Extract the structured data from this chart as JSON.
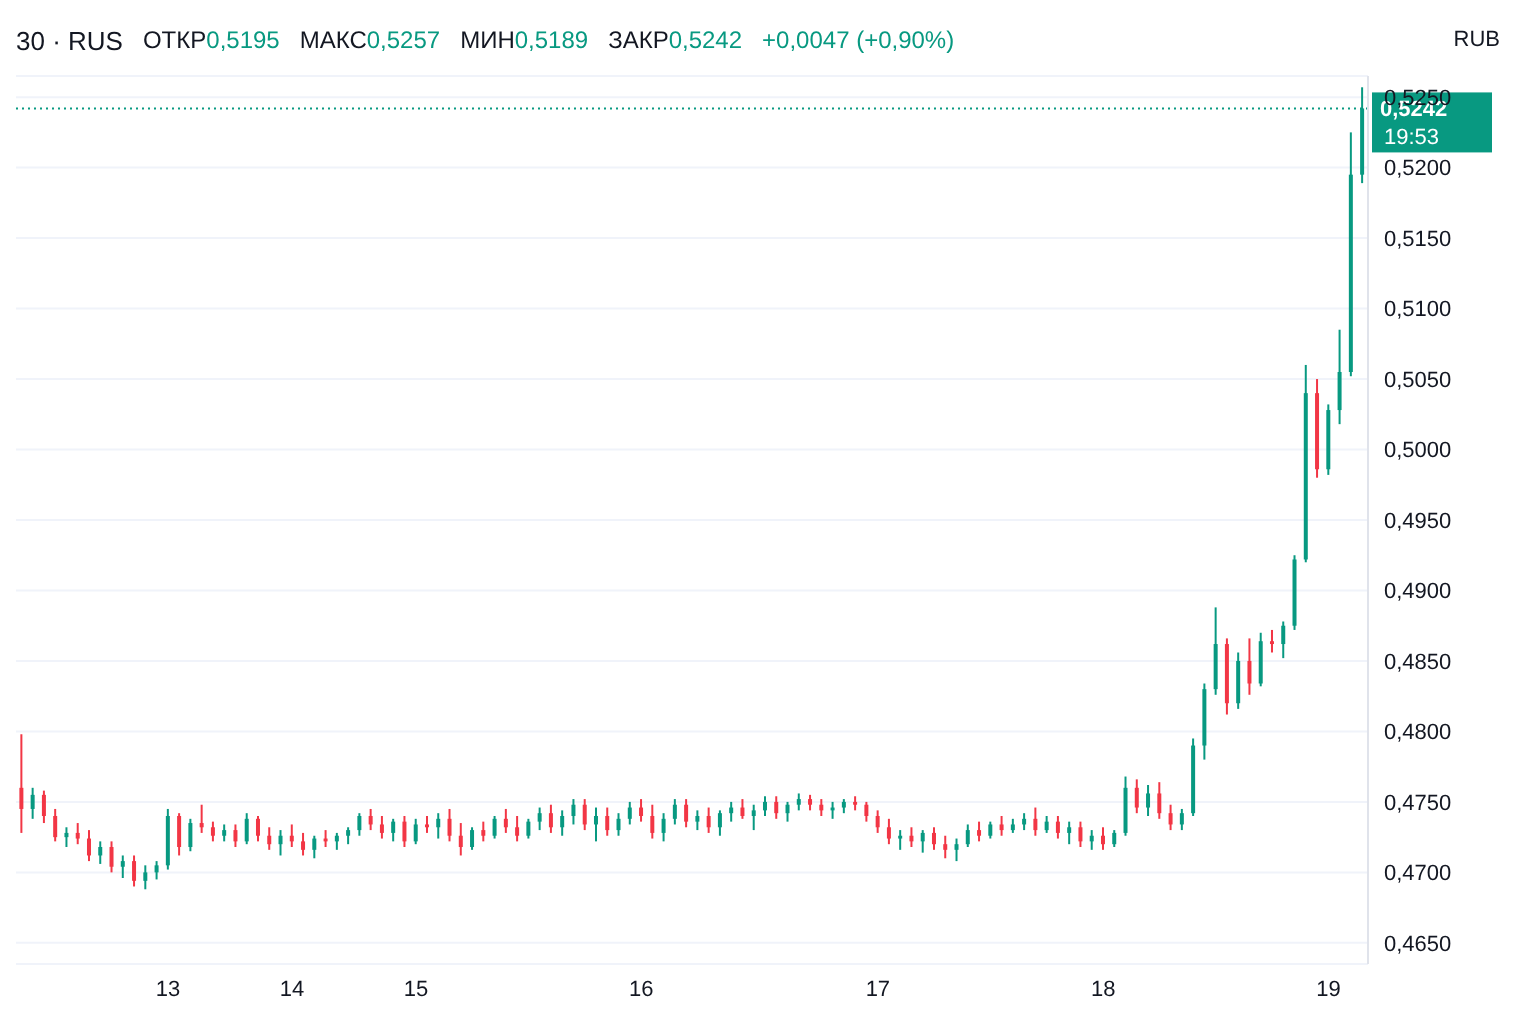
{
  "chart_data": {
    "type": "candlestick",
    "title": "30 · RUS",
    "annotations": [
      "ОТКР0,5195",
      "МАКС0,5257",
      "МИН0,5189",
      "ЗАКР0,5242",
      "+0,0047 (+0,90%)",
      "RUB",
      "19:53"
    ],
    "categories": [
      null,
      null,
      null,
      null,
      null,
      null,
      null,
      null,
      null,
      null,
      null,
      null,
      null,
      "13",
      null,
      null,
      null,
      null,
      null,
      null,
      null,
      null,
      null,
      null,
      "14",
      null,
      null,
      null,
      null,
      null,
      null,
      null,
      null,
      null,
      null,
      "15",
      null,
      null,
      null,
      null,
      null,
      null,
      null,
      null,
      null,
      null,
      null,
      null,
      null,
      null,
      null,
      null,
      null,
      null,
      null,
      "16",
      null,
      null,
      null,
      null,
      null,
      null,
      null,
      null,
      null,
      null,
      null,
      null,
      null,
      null,
      null,
      null,
      null,
      null,
      null,
      null,
      "17",
      null,
      null,
      null,
      null,
      null,
      null,
      null,
      null,
      null,
      null,
      null,
      null,
      null,
      null,
      null,
      null,
      null,
      null,
      null,
      "18",
      null,
      null,
      null,
      null,
      null,
      null,
      null,
      null,
      null,
      null,
      null,
      null,
      null,
      null,
      null,
      null,
      null,
      null,
      null,
      "19",
      null,
      null,
      null
    ],
    "ohlc": [
      [
        0.476,
        0.4798,
        0.4728,
        0.4745
      ],
      [
        0.4745,
        0.476,
        0.4738,
        0.4755
      ],
      [
        0.4755,
        0.4758,
        0.4735,
        0.474
      ],
      [
        0.474,
        0.4745,
        0.4722,
        0.4725
      ],
      [
        0.4725,
        0.4732,
        0.4718,
        0.4728
      ],
      [
        0.4728,
        0.4735,
        0.472,
        0.4724
      ],
      [
        0.4724,
        0.473,
        0.4708,
        0.4712
      ],
      [
        0.4712,
        0.4722,
        0.4706,
        0.4718
      ],
      [
        0.4718,
        0.4722,
        0.47,
        0.4704
      ],
      [
        0.4704,
        0.4712,
        0.4696,
        0.4708
      ],
      [
        0.4708,
        0.4712,
        0.469,
        0.4694
      ],
      [
        0.4694,
        0.4705,
        0.4688,
        0.47
      ],
      [
        0.47,
        0.4708,
        0.4695,
        0.4705
      ],
      [
        0.4705,
        0.4745,
        0.4702,
        0.474
      ],
      [
        0.474,
        0.4742,
        0.4712,
        0.4718
      ],
      [
        0.4718,
        0.4738,
        0.4715,
        0.4735
      ],
      [
        0.4735,
        0.4748,
        0.4728,
        0.4732
      ],
      [
        0.4732,
        0.4736,
        0.4722,
        0.4726
      ],
      [
        0.4726,
        0.4734,
        0.4722,
        0.473
      ],
      [
        0.473,
        0.4734,
        0.4718,
        0.4722
      ],
      [
        0.4722,
        0.4742,
        0.472,
        0.4738
      ],
      [
        0.4738,
        0.474,
        0.4722,
        0.4726
      ],
      [
        0.4726,
        0.4732,
        0.4716,
        0.472
      ],
      [
        0.472,
        0.473,
        0.4712,
        0.4726
      ],
      [
        0.4726,
        0.4734,
        0.4718,
        0.4722
      ],
      [
        0.4722,
        0.4728,
        0.4712,
        0.4716
      ],
      [
        0.4716,
        0.4726,
        0.471,
        0.4724
      ],
      [
        0.4724,
        0.473,
        0.4718,
        0.4722
      ],
      [
        0.4722,
        0.4728,
        0.4716,
        0.4726
      ],
      [
        0.4726,
        0.4732,
        0.472,
        0.473
      ],
      [
        0.473,
        0.4742,
        0.4726,
        0.474
      ],
      [
        0.474,
        0.4745,
        0.473,
        0.4734
      ],
      [
        0.4734,
        0.474,
        0.4724,
        0.4728
      ],
      [
        0.4728,
        0.4738,
        0.4722,
        0.4736
      ],
      [
        0.4736,
        0.474,
        0.4718,
        0.4722
      ],
      [
        0.4722,
        0.4738,
        0.472,
        0.4734
      ],
      [
        0.4734,
        0.474,
        0.4728,
        0.4732
      ],
      [
        0.4732,
        0.4742,
        0.4724,
        0.4738
      ],
      [
        0.4738,
        0.4745,
        0.4722,
        0.4726
      ],
      [
        0.4726,
        0.4735,
        0.4712,
        0.4718
      ],
      [
        0.4718,
        0.4732,
        0.4716,
        0.473
      ],
      [
        0.473,
        0.4736,
        0.4722,
        0.4726
      ],
      [
        0.4726,
        0.474,
        0.4724,
        0.4738
      ],
      [
        0.4738,
        0.4745,
        0.4728,
        0.4732
      ],
      [
        0.4732,
        0.474,
        0.4722,
        0.4726
      ],
      [
        0.4726,
        0.4738,
        0.4724,
        0.4736
      ],
      [
        0.4736,
        0.4746,
        0.473,
        0.4742
      ],
      [
        0.4742,
        0.4748,
        0.4728,
        0.4732
      ],
      [
        0.4732,
        0.4744,
        0.4726,
        0.474
      ],
      [
        0.474,
        0.4752,
        0.4734,
        0.4748
      ],
      [
        0.4748,
        0.4752,
        0.473,
        0.4734
      ],
      [
        0.4734,
        0.4746,
        0.4722,
        0.474
      ],
      [
        0.474,
        0.4746,
        0.4726,
        0.473
      ],
      [
        0.473,
        0.4742,
        0.4726,
        0.4738
      ],
      [
        0.4738,
        0.475,
        0.4734,
        0.4746
      ],
      [
        0.4746,
        0.4752,
        0.4736,
        0.474
      ],
      [
        0.474,
        0.4748,
        0.4724,
        0.4728
      ],
      [
        0.4728,
        0.4742,
        0.4722,
        0.4738
      ],
      [
        0.4738,
        0.4752,
        0.4734,
        0.4748
      ],
      [
        0.4748,
        0.4752,
        0.4732,
        0.4736
      ],
      [
        0.4736,
        0.4744,
        0.473,
        0.474
      ],
      [
        0.474,
        0.4746,
        0.4728,
        0.4732
      ],
      [
        0.4732,
        0.4744,
        0.4726,
        0.4742
      ],
      [
        0.4742,
        0.475,
        0.4736,
        0.4746
      ],
      [
        0.4746,
        0.4752,
        0.4738,
        0.474
      ],
      [
        0.474,
        0.4748,
        0.473,
        0.4744
      ],
      [
        0.4744,
        0.4754,
        0.474,
        0.475
      ],
      [
        0.475,
        0.4754,
        0.4738,
        0.4742
      ],
      [
        0.4742,
        0.475,
        0.4736,
        0.4748
      ],
      [
        0.4748,
        0.4756,
        0.4744,
        0.4752
      ],
      [
        0.4752,
        0.4755,
        0.4744,
        0.4748
      ],
      [
        0.4748,
        0.4752,
        0.474,
        0.4744
      ],
      [
        0.4744,
        0.475,
        0.4738,
        0.4746
      ],
      [
        0.4746,
        0.4752,
        0.4742,
        0.475
      ],
      [
        0.475,
        0.4754,
        0.4744,
        0.4748
      ],
      [
        0.4748,
        0.475,
        0.4736,
        0.474
      ],
      [
        0.474,
        0.4744,
        0.4728,
        0.4732
      ],
      [
        0.4732,
        0.4738,
        0.472,
        0.4724
      ],
      [
        0.4724,
        0.473,
        0.4716,
        0.4726
      ],
      [
        0.4726,
        0.4732,
        0.4718,
        0.4722
      ],
      [
        0.4722,
        0.473,
        0.4714,
        0.4728
      ],
      [
        0.4728,
        0.4732,
        0.4716,
        0.472
      ],
      [
        0.472,
        0.4726,
        0.471,
        0.4716
      ],
      [
        0.4716,
        0.4724,
        0.4708,
        0.472
      ],
      [
        0.472,
        0.4734,
        0.4718,
        0.473
      ],
      [
        0.473,
        0.4736,
        0.4722,
        0.4726
      ],
      [
        0.4726,
        0.4736,
        0.4724,
        0.4734
      ],
      [
        0.4734,
        0.474,
        0.4726,
        0.473
      ],
      [
        0.473,
        0.4738,
        0.4728,
        0.4734
      ],
      [
        0.4734,
        0.4742,
        0.473,
        0.4738
      ],
      [
        0.4738,
        0.4746,
        0.4726,
        0.473
      ],
      [
        0.473,
        0.474,
        0.4728,
        0.4736
      ],
      [
        0.4736,
        0.474,
        0.4724,
        0.4728
      ],
      [
        0.4728,
        0.4736,
        0.472,
        0.4732
      ],
      [
        0.4732,
        0.4736,
        0.4718,
        0.4722
      ],
      [
        0.4722,
        0.473,
        0.4716,
        0.4726
      ],
      [
        0.4726,
        0.4732,
        0.4716,
        0.472
      ],
      [
        0.472,
        0.473,
        0.4718,
        0.4728
      ],
      [
        0.4728,
        0.4768,
        0.4726,
        0.476
      ],
      [
        0.476,
        0.4766,
        0.4742,
        0.4746
      ],
      [
        0.4746,
        0.4762,
        0.474,
        0.4756
      ],
      [
        0.4756,
        0.4764,
        0.4738,
        0.4742
      ],
      [
        0.4742,
        0.4748,
        0.473,
        0.4734
      ],
      [
        0.4734,
        0.4745,
        0.473,
        0.4742
      ],
      [
        0.4742,
        0.4795,
        0.474,
        0.479
      ],
      [
        0.479,
        0.4834,
        0.478,
        0.483
      ],
      [
        0.483,
        0.4888,
        0.4826,
        0.4862
      ],
      [
        0.4862,
        0.4866,
        0.4812,
        0.482
      ],
      [
        0.482,
        0.4856,
        0.4816,
        0.485
      ],
      [
        0.485,
        0.4866,
        0.4826,
        0.4834
      ],
      [
        0.4834,
        0.487,
        0.4832,
        0.4864
      ],
      [
        0.4864,
        0.4872,
        0.4856,
        0.4862
      ],
      [
        0.4862,
        0.4878,
        0.4852,
        0.4875
      ],
      [
        0.4875,
        0.4925,
        0.4872,
        0.4922
      ],
      [
        0.4922,
        0.506,
        0.492,
        0.504
      ],
      [
        0.504,
        0.505,
        0.498,
        0.4986
      ],
      [
        0.4986,
        0.5032,
        0.4982,
        0.5028
      ],
      [
        0.5028,
        0.5085,
        0.5018,
        0.5055
      ],
      [
        0.5055,
        0.5225,
        0.5052,
        0.5195
      ],
      [
        0.5195,
        0.5257,
        0.5189,
        0.5242
      ]
    ],
    "ylim": [
      0.4635,
      0.5265
    ],
    "yticks": [
      {
        "value": 0.465,
        "label": "0,4650"
      },
      {
        "value": 0.47,
        "label": "0,4700"
      },
      {
        "value": 0.475,
        "label": "0,4750"
      },
      {
        "value": 0.48,
        "label": "0,4800"
      },
      {
        "value": 0.485,
        "label": "0,4850"
      },
      {
        "value": 0.49,
        "label": "0,4900"
      },
      {
        "value": 0.495,
        "label": "0,4950"
      },
      {
        "value": 0.5,
        "label": "0,5000"
      },
      {
        "value": 0.505,
        "label": "0,5050"
      },
      {
        "value": 0.51,
        "label": "0,5100"
      },
      {
        "value": 0.515,
        "label": "0,5150"
      },
      {
        "value": 0.52,
        "label": "0,5200"
      },
      {
        "value": 0.525,
        "label": "0,5250"
      }
    ],
    "grid": "y",
    "ref_lines": [
      {
        "axis": "y",
        "value": 0.5242,
        "label": "0,5242",
        "color": "#089981",
        "line_style": "dotted"
      }
    ]
  }
}
